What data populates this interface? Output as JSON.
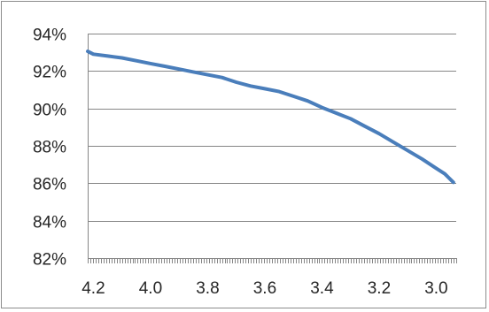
{
  "chart_data": {
    "type": "line",
    "title": "",
    "xlabel": "",
    "ylabel": "",
    "x_reversed": true,
    "xlim": [
      2.93,
      4.22
    ],
    "ylim": [
      0.82,
      0.94
    ],
    "y_ticks": [
      {
        "value": 0.82,
        "label": "82%"
      },
      {
        "value": 0.84,
        "label": "84%"
      },
      {
        "value": 0.86,
        "label": "86%"
      },
      {
        "value": 0.88,
        "label": "88%"
      },
      {
        "value": 0.9,
        "label": "90%"
      },
      {
        "value": 0.92,
        "label": "92%"
      },
      {
        "value": 0.94,
        "label": "94%"
      }
    ],
    "x_ticks": [
      {
        "value": 4.2,
        "label": "4.2"
      },
      {
        "value": 4.0,
        "label": "4.0"
      },
      {
        "value": 3.8,
        "label": "3.8"
      },
      {
        "value": 3.6,
        "label": "3.6"
      },
      {
        "value": 3.4,
        "label": "3.4"
      },
      {
        "value": 3.2,
        "label": "3.2"
      },
      {
        "value": 3.0,
        "label": "3.0"
      }
    ],
    "grid": true,
    "series_color": "#4a7ebb",
    "series": [
      {
        "x": [
          4.22,
          4.2,
          4.15,
          4.1,
          4.05,
          4.0,
          3.95,
          3.9,
          3.85,
          3.8,
          3.75,
          3.7,
          3.65,
          3.6,
          3.55,
          3.5,
          3.45,
          3.4,
          3.35,
          3.3,
          3.25,
          3.2,
          3.15,
          3.1,
          3.05,
          3.0,
          2.97,
          2.94
        ],
        "y": [
          0.9305,
          0.929,
          0.928,
          0.927,
          0.9255,
          0.924,
          0.9225,
          0.921,
          0.9195,
          0.918,
          0.9165,
          0.914,
          0.912,
          0.9105,
          0.909,
          0.9065,
          0.904,
          0.9005,
          0.8975,
          0.8945,
          0.8905,
          0.8865,
          0.882,
          0.8775,
          0.873,
          0.868,
          0.865,
          0.8605
        ]
      }
    ]
  }
}
